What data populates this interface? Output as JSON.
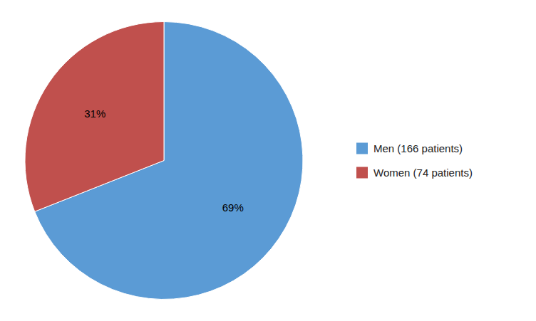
{
  "chart_data": {
    "type": "pie",
    "categories": [
      "Men (166 patients)",
      "Women (74 patients)"
    ],
    "values": [
      69,
      31
    ],
    "value_labels": [
      "69%",
      "31%"
    ],
    "colors": [
      "#5B9BD5",
      "#C0504D"
    ],
    "data_labels": true,
    "legend": "right"
  }
}
